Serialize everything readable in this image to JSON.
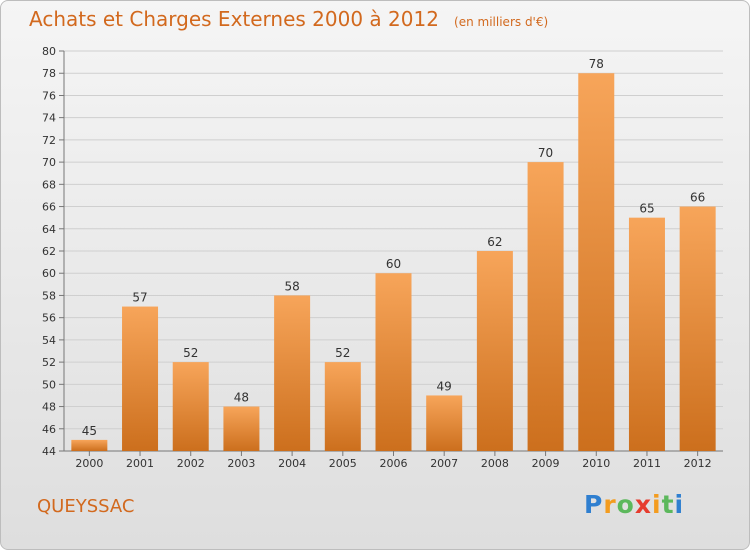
{
  "header": {
    "title": "Achats et Charges Externes 2000 à 2012",
    "subtitle": "(en milliers d'€)"
  },
  "footer": {
    "place": "QUEYSSAC",
    "logo_letters": [
      "P",
      "r",
      "o",
      "x",
      "i",
      "t",
      "i"
    ],
    "logo_colors": [
      "#2f7fd0",
      "#f39c1f",
      "#5cb85c",
      "#e63c2e",
      "#f39c1f",
      "#5cb85c",
      "#2f7fd0"
    ]
  },
  "colors": {
    "bar_top": "#f7a55a",
    "bar_bottom": "#cc6f1d",
    "text_accent": "#d2691e",
    "grid": "#cfcfcf"
  },
  "chart_data": {
    "type": "bar",
    "title": "Achats et Charges Externes 2000 à 2012",
    "subtitle": "(en milliers d'€)",
    "categories": [
      "2000",
      "2001",
      "2002",
      "2003",
      "2004",
      "2005",
      "2006",
      "2007",
      "2008",
      "2009",
      "2010",
      "2011",
      "2012"
    ],
    "values": [
      45,
      57,
      52,
      48,
      58,
      52,
      60,
      49,
      62,
      70,
      78,
      65,
      66
    ],
    "ylim": [
      44,
      80
    ],
    "yticks": [
      44,
      46,
      48,
      50,
      52,
      54,
      56,
      58,
      60,
      62,
      64,
      66,
      68,
      70,
      72,
      74,
      76,
      78,
      80
    ],
    "grid": true,
    "xlabel": "",
    "ylabel": ""
  }
}
